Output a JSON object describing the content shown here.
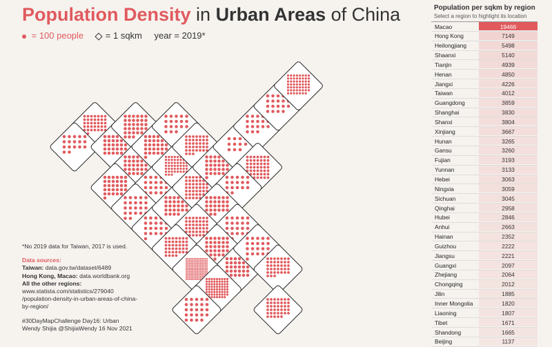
{
  "title": {
    "part1": "Population Density",
    "part2": " in ",
    "part3": "Urban Areas",
    "part4": " of China"
  },
  "legend": {
    "dot_label": " = 100 people",
    "diamond_label": "= 1 sqkm",
    "year_label": "year = 2019*"
  },
  "notes": {
    "footnote": "*No 2019 data for Taiwan,  2017 is used.",
    "sources_title": "Data sources:",
    "taiwan_label": "Taiwan:",
    "taiwan_src": " data.gov.tw/dataset/6489",
    "hkm_label": "Hong Kong, Macao:",
    "hkm_src": " data.worldbank.org",
    "other_label": "All the other regions:",
    "other_src1": "www.statista.com/statistics/279040",
    "other_src2": "/population-density-in-urban-areas-of-china-",
    "other_src3": "by-region/",
    "credit1": "#30DayMapChallenge Day16: Urban",
    "credit2": "Wendy Shijia   @ShijiaWendy   16 Nov 2021"
  },
  "panel": {
    "title": "Population per sqkm by region",
    "subtitle": "Select a region to highlight its location"
  },
  "colors": {
    "accent": "#e05a5e",
    "ink": "#333333",
    "background": "#f6f3ef"
  },
  "chart_data": {
    "type": "table",
    "unit": "people per sqkm",
    "dot_value": 100,
    "regions": [
      {
        "name": "Macao",
        "value": 19466
      },
      {
        "name": "Hong Kong",
        "value": 7149
      },
      {
        "name": "Heilongjiang",
        "value": 5498
      },
      {
        "name": "Shaanxi",
        "value": 5140
      },
      {
        "name": "Tianjin",
        "value": 4939
      },
      {
        "name": "Henan",
        "value": 4850
      },
      {
        "name": "Jiangxi",
        "value": 4226
      },
      {
        "name": "Taiwan",
        "value": 4012
      },
      {
        "name": "Guangdong",
        "value": 3859
      },
      {
        "name": "Shanghai",
        "value": 3830
      },
      {
        "name": "Shanxi",
        "value": 3804
      },
      {
        "name": "Xinjiang",
        "value": 3667
      },
      {
        "name": "Hunan",
        "value": 3265
      },
      {
        "name": "Gansu",
        "value": 3260
      },
      {
        "name": "Fujian",
        "value": 3193
      },
      {
        "name": "Yunnan",
        "value": 3133
      },
      {
        "name": "Hebei",
        "value": 3063
      },
      {
        "name": "Ningxia",
        "value": 3059
      },
      {
        "name": "Sichuan",
        "value": 3045
      },
      {
        "name": "Qinghai",
        "value": 2958
      },
      {
        "name": "Hubei",
        "value": 2846
      },
      {
        "name": "Anhui",
        "value": 2663
      },
      {
        "name": "Hainan",
        "value": 2352
      },
      {
        "name": "Guizhou",
        "value": 2222
      },
      {
        "name": "Jiangsu",
        "value": 2221
      },
      {
        "name": "Guangxi",
        "value": 2097
      },
      {
        "name": "Zhejiang",
        "value": 2064
      },
      {
        "name": "Chongqing",
        "value": 2012
      },
      {
        "name": "Jilin",
        "value": 1885
      },
      {
        "name": "Inner Mongolia",
        "value": 1820
      },
      {
        "name": "Liaoning",
        "value": 1807
      },
      {
        "name": "Tibet",
        "value": 1671
      },
      {
        "name": "Shandong",
        "value": 1665
      },
      {
        "name": "Beijing",
        "value": 1137
      }
    ],
    "selected": "Macao"
  }
}
